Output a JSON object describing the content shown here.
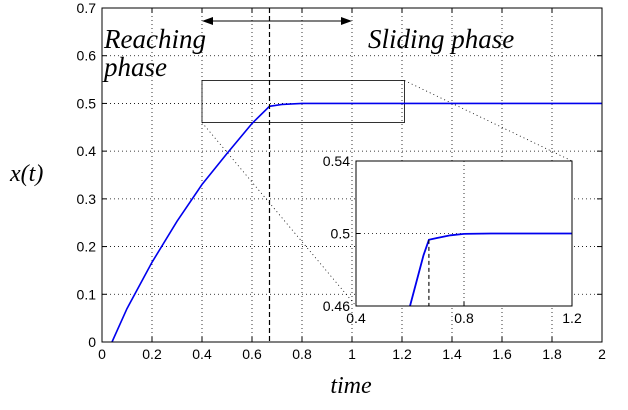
{
  "chart_data": {
    "type": "line",
    "title": "",
    "xlabel": "time",
    "ylabel": "x(t)",
    "xlim": [
      0,
      2
    ],
    "ylim": [
      0,
      0.7
    ],
    "xticks": [
      0,
      0.2,
      0.4,
      0.6,
      0.8,
      1,
      1.2,
      1.4,
      1.6,
      1.8,
      2
    ],
    "yticks": [
      0,
      0.1,
      0.2,
      0.3,
      0.4,
      0.5,
      0.6,
      0.7
    ],
    "xtick_labels": [
      "0",
      "0.2",
      "0.4",
      "0.6",
      "0.8",
      "1",
      "1.2",
      "1.4",
      "1.6",
      "1.8",
      "2"
    ],
    "ytick_labels": [
      "0",
      "0.1",
      "0.2",
      "0.3",
      "0.4",
      "0.5",
      "0.6",
      "0.7"
    ],
    "grid": true,
    "series": [
      {
        "color": "#0000ee",
        "x": [
          0.04,
          0.1,
          0.2,
          0.3,
          0.4,
          0.5,
          0.6,
          0.67,
          0.72,
          0.8,
          1.0,
          1.2,
          1.5,
          2.0
        ],
        "y": [
          0.0,
          0.07,
          0.167,
          0.253,
          0.33,
          0.395,
          0.458,
          0.494,
          0.498,
          0.5,
          0.5,
          0.5,
          0.5,
          0.5
        ]
      }
    ],
    "switch_time": 0.67,
    "zoom_box": {
      "x": [
        0.4,
        1.21
      ],
      "y": [
        0.46,
        0.548
      ]
    },
    "annotations": {
      "reaching": [
        "Reaching",
        "phase"
      ],
      "sliding": "Sliding phase"
    },
    "arrow_x_range": [
      0.4,
      1.0
    ],
    "inset": {
      "xlim": [
        0.4,
        1.2
      ],
      "ylim": [
        0.46,
        0.54
      ],
      "xticks": [
        0.4,
        0.8,
        1.2
      ],
      "yticks": [
        0.46,
        0.5,
        0.54
      ],
      "xtick_labels": [
        "0.4",
        "0.8",
        "1.2"
      ],
      "ytick_labels": [
        "0.46",
        "0.5",
        "0.54"
      ],
      "grid": true,
      "x": [
        0.6,
        0.65,
        0.67,
        0.7,
        0.75,
        0.8,
        0.9,
        1.0,
        1.2
      ],
      "y": [
        0.46,
        0.488,
        0.4965,
        0.4975,
        0.499,
        0.4998,
        0.5,
        0.5,
        0.5
      ],
      "switch_time": 0.67
    }
  }
}
